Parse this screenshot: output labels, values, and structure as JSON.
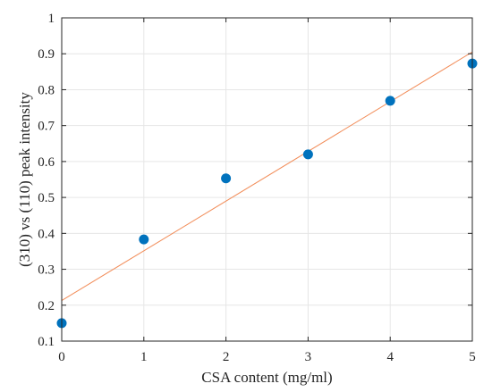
{
  "chart_data": {
    "type": "scatter",
    "xlabel": "CSA content (mg/ml)",
    "ylabel": "(310) vs (110) peak intensity",
    "xlim": [
      0,
      5
    ],
    "ylim": [
      0.1,
      1
    ],
    "xticks": [
      "0",
      "1",
      "2",
      "3",
      "4",
      "5"
    ],
    "yticks": [
      "0.1",
      "0.2",
      "0.3",
      "0.4",
      "0.5",
      "0.6",
      "0.7",
      "0.8",
      "0.9",
      "1"
    ],
    "grid": true,
    "series": [
      {
        "kind": "scatter",
        "color": "#0072BD",
        "x": [
          0,
          1,
          2,
          3,
          4,
          5
        ],
        "y": [
          0.15,
          0.383,
          0.553,
          0.62,
          0.769,
          0.873
        ]
      },
      {
        "kind": "line",
        "color": "#F28E5B",
        "x": [
          0,
          5
        ],
        "y": [
          0.213,
          0.905
        ]
      }
    ]
  }
}
